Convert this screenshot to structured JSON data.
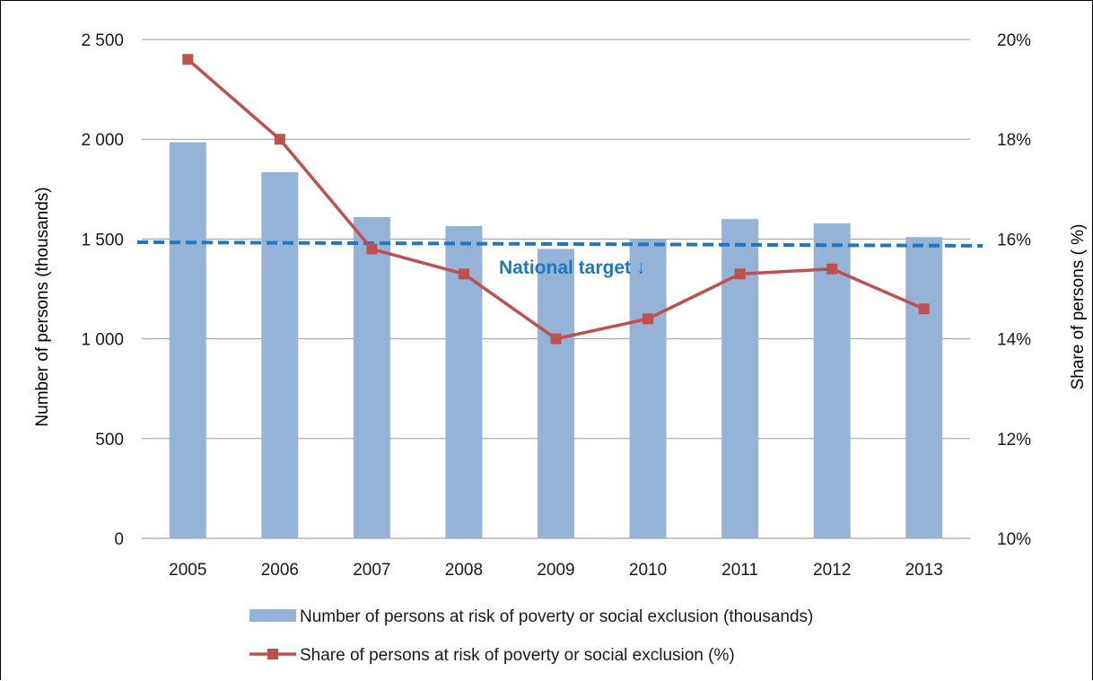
{
  "chart_data": {
    "type": "bar",
    "categories": [
      "2005",
      "2006",
      "2007",
      "2008",
      "2009",
      "2010",
      "2011",
      "2012",
      "2013"
    ],
    "series": [
      {
        "name": "Number of persons at risk of poverty or social exclusion (thousands)",
        "type": "bar",
        "axis": "left",
        "values": [
          1985,
          1835,
          1610,
          1565,
          1450,
          1500,
          1600,
          1578,
          1510
        ],
        "color": "#95b3d7"
      },
      {
        "name": "Share of persons at risk of poverty or social exclusion (%)",
        "type": "line",
        "axis": "right",
        "values": [
          19.6,
          18.0,
          15.8,
          15.3,
          14.0,
          14.4,
          15.3,
          15.4,
          14.6
        ],
        "color": "#c0504d"
      }
    ],
    "reference_line": {
      "label": "National target ↓",
      "value": 1475,
      "axis": "left",
      "style": "dashed",
      "color": "#1f77c4"
    },
    "left_axis": {
      "label": "Number of persons (thousands)",
      "range": [
        0,
        2500
      ],
      "ticks": [
        {
          "value": 0,
          "label": "0"
        },
        {
          "value": 500,
          "label": "500"
        },
        {
          "value": 1000,
          "label": "1 000"
        },
        {
          "value": 1500,
          "label": "1 500"
        },
        {
          "value": 2000,
          "label": "2 000"
        },
        {
          "value": 2500,
          "label": "2 500"
        }
      ]
    },
    "right_axis": {
      "label": "Share of persons ( %)",
      "range": [
        10,
        20
      ],
      "ticks": [
        {
          "value": 10,
          "label": "10%"
        },
        {
          "value": 12,
          "label": "12%"
        },
        {
          "value": 14,
          "label": "14%"
        },
        {
          "value": 16,
          "label": "16%"
        },
        {
          "value": 18,
          "label": "18%"
        },
        {
          "value": 20,
          "label": "20%"
        }
      ]
    },
    "grid": true,
    "legend_position": "bottom"
  }
}
